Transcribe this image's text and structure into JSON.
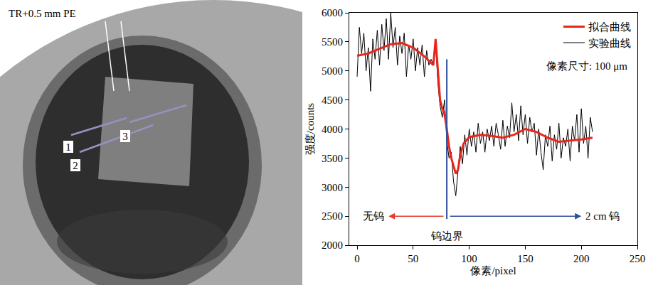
{
  "radiograph": {
    "label": "TR+0.5 mm PE",
    "line_labels": [
      "1",
      "2",
      "3"
    ]
  },
  "chart_data": {
    "type": "line",
    "x_label": "像素/pixel",
    "y_label": "强度/counts",
    "xlim": [
      -7,
      250
    ],
    "xticks": [
      0,
      50,
      100,
      150,
      200,
      250
    ],
    "ylim": [
      2000,
      6000
    ],
    "yticks": [
      2000,
      2500,
      3000,
      3500,
      4000,
      4500,
      5000,
      5500,
      6000
    ],
    "grid": false,
    "legend": "upper right",
    "annotations": [
      "像素尺寸: 100 μm"
    ],
    "boundary": {
      "x": 80,
      "y": [
        2450,
        5200
      ],
      "label": "钨边界",
      "color": "#2f4ea0"
    },
    "arrows": [
      {
        "text": "无钨",
        "from": 78,
        "to": 28,
        "y": 2500,
        "color": "#e8392b"
      },
      {
        "text": "2 cm 钨",
        "from": 82,
        "to": 200,
        "y": 2500,
        "color": "#2f4ea0"
      }
    ],
    "series": [
      {
        "name": "拟合曲线",
        "color": "#e8261c",
        "line_style": "solid",
        "x": [
          0,
          10,
          20,
          30,
          40,
          50,
          60,
          68,
          70,
          72,
          74,
          76,
          78,
          80,
          82,
          84,
          86,
          88,
          90,
          92,
          95,
          100,
          110,
          120,
          130,
          140,
          150,
          160,
          170,
          180,
          190,
          200,
          210
        ],
        "values": [
          5260,
          5300,
          5380,
          5460,
          5480,
          5400,
          5250,
          5100,
          5550,
          5000,
          4500,
          4350,
          4250,
          4000,
          3700,
          3500,
          3350,
          3230,
          3300,
          3550,
          3750,
          3860,
          3900,
          3880,
          3850,
          3900,
          4000,
          3950,
          3850,
          3780,
          3800,
          3820,
          3850
        ]
      },
      {
        "name": "实验曲线",
        "color": "#000000",
        "line_style": "solid",
        "x": [
          0,
          2,
          4,
          6,
          8,
          10,
          12,
          14,
          16,
          18,
          20,
          22,
          24,
          26,
          28,
          30,
          32,
          34,
          36,
          38,
          40,
          42,
          44,
          46,
          48,
          50,
          52,
          54,
          56,
          58,
          60,
          62,
          64,
          66,
          68,
          70,
          72,
          74,
          76,
          78,
          80,
          82,
          84,
          86,
          88,
          90,
          92,
          94,
          96,
          98,
          100,
          102,
          104,
          106,
          108,
          110,
          112,
          114,
          116,
          118,
          120,
          122,
          124,
          126,
          128,
          130,
          132,
          134,
          136,
          138,
          140,
          142,
          144,
          146,
          148,
          150,
          152,
          154,
          156,
          158,
          160,
          162,
          164,
          166,
          168,
          170,
          172,
          174,
          176,
          178,
          180,
          182,
          184,
          186,
          188,
          190,
          192,
          194,
          196,
          198,
          200,
          202,
          204,
          206,
          208,
          210
        ],
        "values": [
          4900,
          5750,
          5300,
          5650,
          5000,
          5400,
          4650,
          5550,
          5200,
          5700,
          5100,
          5800,
          5350,
          5900,
          5200,
          6000,
          5400,
          5750,
          5100,
          5600,
          5300,
          5650,
          4900,
          5450,
          5200,
          5550,
          5000,
          5400,
          5100,
          5450,
          4900,
          5350,
          5100,
          5200,
          5100,
          5500,
          4800,
          4400,
          4200,
          4500,
          3800,
          3500,
          3600,
          3100,
          2850,
          3300,
          3700,
          3400,
          3900,
          3550,
          4000,
          3700,
          3950,
          3600,
          4100,
          3750,
          3950,
          3600,
          4000,
          3800,
          4050,
          3700,
          4100,
          3900,
          3650,
          4150,
          3700,
          4050,
          3850,
          4450,
          3950,
          4250,
          3800,
          4400,
          3900,
          4250,
          3750,
          4200,
          3950,
          4100,
          3550,
          4000,
          3600,
          3300,
          3900,
          3700,
          4050,
          3450,
          3900,
          3650,
          4100,
          3500,
          3850,
          3700,
          4000,
          3450,
          4050,
          3800,
          4250,
          3600,
          4350,
          3750,
          4050,
          3500,
          4200,
          3950
        ]
      }
    ]
  }
}
